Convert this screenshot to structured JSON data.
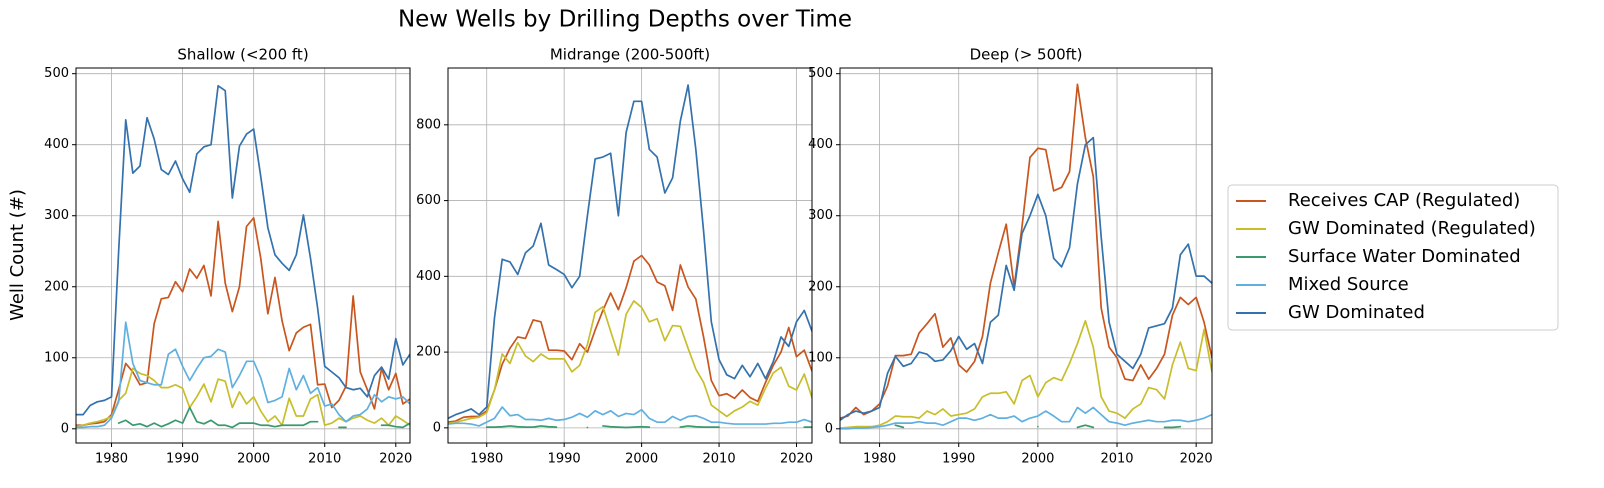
{
  "title": "New Wells by Drilling Depths over Time",
  "y_label": "Well Count (#)",
  "legend_loc": "center right",
  "chart_data": [
    {
      "type": "line",
      "title": "Shallow (<200 ft)",
      "grid": true,
      "x": [
        1975,
        1976,
        1977,
        1978,
        1979,
        1980,
        1981,
        1982,
        1983,
        1984,
        1985,
        1986,
        1987,
        1988,
        1989,
        1990,
        1991,
        1992,
        1993,
        1994,
        1995,
        1996,
        1997,
        1998,
        1999,
        2000,
        2001,
        2002,
        2003,
        2004,
        2005,
        2006,
        2007,
        2008,
        2009,
        2010,
        2011,
        2012,
        2013,
        2014,
        2015,
        2016,
        2017,
        2018,
        2019,
        2020,
        2021,
        2022
      ],
      "xlim": [
        1975,
        2022
      ],
      "xticks": [
        1980,
        1990,
        2000,
        2010,
        2020
      ],
      "ylim": [
        -20,
        508
      ],
      "yticks": [
        0,
        100,
        200,
        300,
        400,
        500
      ],
      "series": [
        {
          "name": "Receives CAP (Regulated)",
          "color": "#c8561e",
          "values": [
            5,
            5,
            7,
            8,
            10,
            20,
            55,
            92,
            80,
            62,
            65,
            148,
            183,
            185,
            207,
            193,
            225,
            212,
            230,
            187,
            292,
            205,
            165,
            200,
            285,
            297,
            240,
            162,
            213,
            152,
            110,
            135,
            143,
            147,
            62,
            63,
            30,
            40,
            60,
            187,
            80,
            55,
            28,
            85,
            55,
            78,
            35,
            42
          ]
        },
        {
          "name": "GW Dominated (Regulated)",
          "color": "#c8be2c",
          "values": [
            3,
            5,
            8,
            10,
            13,
            17,
            40,
            50,
            85,
            78,
            75,
            68,
            58,
            58,
            62,
            57,
            30,
            45,
            63,
            38,
            70,
            67,
            30,
            52,
            35,
            45,
            25,
            10,
            18,
            5,
            43,
            18,
            18,
            42,
            48,
            5,
            8,
            15,
            10,
            15,
            18,
            12,
            8,
            15,
            5,
            18,
            12,
            5
          ]
        },
        {
          "name": "Surface Water Dominated",
          "color": "#3a9a6e",
          "values": [
            null,
            null,
            null,
            null,
            null,
            null,
            8,
            12,
            5,
            7,
            3,
            8,
            3,
            7,
            12,
            8,
            30,
            10,
            7,
            12,
            5,
            5,
            2,
            8,
            8,
            8,
            5,
            5,
            3,
            5,
            5,
            5,
            5,
            10,
            10,
            null,
            null,
            2,
            2,
            null,
            null,
            null,
            null,
            5,
            5,
            3,
            2,
            8
          ]
        },
        {
          "name": "Mixed Source",
          "color": "#5fb0e0",
          "values": [
            2,
            2,
            3,
            3,
            5,
            15,
            38,
            150,
            92,
            68,
            65,
            62,
            62,
            105,
            112,
            88,
            68,
            85,
            100,
            102,
            112,
            108,
            58,
            75,
            95,
            95,
            72,
            37,
            40,
            45,
            85,
            55,
            75,
            50,
            58,
            32,
            35,
            20,
            10,
            18,
            20,
            28,
            48,
            38,
            45,
            42,
            45,
            35
          ]
        },
        {
          "name": "GW Dominated",
          "color": "#3472ad",
          "values": [
            20,
            20,
            33,
            38,
            40,
            45,
            250,
            435,
            360,
            370,
            438,
            408,
            365,
            358,
            377,
            352,
            333,
            387,
            397,
            400,
            483,
            476,
            325,
            398,
            415,
            422,
            355,
            283,
            245,
            233,
            223,
            245,
            301,
            240,
            170,
            88,
            80,
            72,
            58,
            55,
            57,
            45,
            75,
            87,
            70,
            127,
            90,
            105
          ]
        }
      ]
    },
    {
      "type": "line",
      "title": "Midrange (200-500ft)",
      "grid": true,
      "x": [
        1975,
        1976,
        1977,
        1978,
        1979,
        1980,
        1981,
        1982,
        1983,
        1984,
        1985,
        1986,
        1987,
        1988,
        1989,
        1990,
        1991,
        1992,
        1993,
        1994,
        1995,
        1996,
        1997,
        1998,
        1999,
        2000,
        2001,
        2002,
        2003,
        2004,
        2005,
        2006,
        2007,
        2008,
        2009,
        2010,
        2011,
        2012,
        2013,
        2014,
        2015,
        2016,
        2017,
        2018,
        2019,
        2020,
        2021,
        2022
      ],
      "xlim": [
        1975,
        2022
      ],
      "xticks": [
        1980,
        1990,
        2000,
        2010,
        2020
      ],
      "ylim": [
        -40,
        950
      ],
      "yticks": [
        0,
        200,
        400,
        600,
        800
      ],
      "series": [
        {
          "name": "Receives CAP (Regulated)",
          "color": "#c8561e",
          "values": [
            15,
            18,
            28,
            30,
            30,
            45,
            100,
            168,
            210,
            240,
            236,
            285,
            280,
            205,
            205,
            203,
            180,
            222,
            200,
            258,
            310,
            356,
            312,
            370,
            440,
            455,
            430,
            385,
            375,
            310,
            430,
            372,
            340,
            240,
            125,
            85,
            90,
            78,
            100,
            80,
            70,
            120,
            165,
            200,
            265,
            188,
            205,
            150
          ]
        },
        {
          "name": "GW Dominated (Regulated)",
          "color": "#c8be2c",
          "values": [
            12,
            15,
            20,
            25,
            28,
            40,
            100,
            195,
            170,
            225,
            190,
            175,
            195,
            182,
            182,
            182,
            148,
            165,
            220,
            305,
            320,
            255,
            192,
            300,
            335,
            318,
            280,
            288,
            230,
            270,
            268,
            210,
            155,
            120,
            60,
            45,
            30,
            45,
            55,
            70,
            60,
            105,
            145,
            160,
            110,
            100,
            142,
            80
          ]
        },
        {
          "name": "Surface Water Dominated",
          "color": "#3a9a6e",
          "values": [
            null,
            null,
            null,
            null,
            null,
            2,
            2,
            3,
            5,
            3,
            2,
            2,
            5,
            3,
            2,
            null,
            null,
            null,
            1,
            null,
            5,
            3,
            2,
            1,
            2,
            3,
            2,
            null,
            null,
            null,
            2,
            5,
            3,
            2,
            2,
            2,
            null,
            null,
            null,
            null,
            null,
            null,
            null,
            null,
            null,
            null,
            2,
            2
          ]
        },
        {
          "name": "Mixed Source",
          "color": "#5fb0e0",
          "values": [
            10,
            12,
            12,
            10,
            5,
            15,
            25,
            55,
            32,
            35,
            22,
            22,
            20,
            25,
            20,
            22,
            28,
            38,
            28,
            45,
            35,
            45,
            30,
            38,
            35,
            48,
            25,
            15,
            15,
            30,
            20,
            30,
            32,
            25,
            15,
            15,
            12,
            10,
            10,
            10,
            10,
            10,
            12,
            12,
            15,
            15,
            22,
            15
          ]
        },
        {
          "name": "GW Dominated",
          "color": "#3472ad",
          "values": [
            25,
            35,
            42,
            50,
            35,
            55,
            290,
            445,
            438,
            405,
            462,
            480,
            540,
            430,
            418,
            405,
            370,
            400,
            560,
            710,
            715,
            725,
            560,
            780,
            862,
            862,
            735,
            715,
            620,
            660,
            810,
            905,
            735,
            520,
            280,
            180,
            140,
            130,
            165,
            135,
            170,
            130,
            175,
            240,
            215,
            280,
            310,
            255
          ]
        }
      ]
    },
    {
      "type": "line",
      "title": "Deep (> 500ft)",
      "grid": true,
      "x": [
        1975,
        1976,
        1977,
        1978,
        1979,
        1980,
        1981,
        1982,
        1983,
        1984,
        1985,
        1986,
        1987,
        1988,
        1989,
        1990,
        1991,
        1992,
        1993,
        1994,
        1995,
        1996,
        1997,
        1998,
        1999,
        2000,
        2001,
        2002,
        2003,
        2004,
        2005,
        2006,
        2007,
        2008,
        2009,
        2010,
        2011,
        2012,
        2013,
        2014,
        2015,
        2016,
        2017,
        2018,
        2019,
        2020,
        2021,
        2022
      ],
      "xlim": [
        1975,
        2022
      ],
      "xticks": [
        1980,
        1990,
        2000,
        2010,
        2020
      ],
      "ylim": [
        -20,
        508
      ],
      "yticks": [
        0,
        100,
        200,
        300,
        400,
        500
      ],
      "series": [
        {
          "name": "Receives CAP (Regulated)",
          "color": "#c8561e",
          "values": [
            15,
            18,
            30,
            20,
            25,
            35,
            60,
            103,
            103,
            105,
            135,
            148,
            162,
            115,
            128,
            90,
            80,
            95,
            130,
            205,
            248,
            288,
            200,
            285,
            382,
            395,
            393,
            335,
            340,
            362,
            485,
            410,
            355,
            170,
            115,
            100,
            70,
            68,
            90,
            70,
            85,
            105,
            160,
            185,
            175,
            185,
            150,
            100
          ]
        },
        {
          "name": "GW Dominated (Regulated)",
          "color": "#c8be2c",
          "values": [
            1,
            2,
            3,
            3,
            3,
            5,
            10,
            18,
            17,
            17,
            15,
            25,
            20,
            28,
            18,
            20,
            22,
            28,
            45,
            50,
            50,
            52,
            35,
            68,
            75,
            45,
            65,
            72,
            68,
            92,
            120,
            152,
            115,
            45,
            25,
            22,
            15,
            28,
            35,
            58,
            55,
            42,
            90,
            122,
            85,
            82,
            140,
            80
          ]
        },
        {
          "name": "Surface Water Dominated",
          "color": "#3a9a6e",
          "values": [
            null,
            null,
            null,
            null,
            null,
            null,
            null,
            5,
            2,
            null,
            null,
            null,
            null,
            null,
            null,
            null,
            null,
            null,
            null,
            null,
            null,
            null,
            null,
            null,
            null,
            3,
            null,
            null,
            null,
            null,
            2,
            5,
            2,
            null,
            null,
            null,
            null,
            null,
            null,
            null,
            null,
            2,
            2,
            3,
            null,
            null,
            null,
            null
          ]
        },
        {
          "name": "Mixed Source",
          "color": "#5fb0e0",
          "values": [
            0,
            0,
            1,
            1,
            2,
            3,
            5,
            8,
            8,
            8,
            10,
            8,
            8,
            5,
            10,
            15,
            15,
            12,
            15,
            20,
            15,
            15,
            18,
            10,
            15,
            18,
            25,
            18,
            10,
            10,
            30,
            22,
            30,
            20,
            10,
            8,
            5,
            8,
            10,
            12,
            10,
            10,
            12,
            12,
            10,
            12,
            15,
            20
          ]
        },
        {
          "name": "GW Dominated",
          "color": "#3472ad",
          "values": [
            12,
            20,
            25,
            22,
            25,
            30,
            78,
            102,
            88,
            92,
            108,
            105,
            95,
            97,
            110,
            130,
            112,
            120,
            92,
            150,
            160,
            230,
            195,
            275,
            300,
            330,
            300,
            240,
            228,
            255,
            345,
            400,
            410,
            270,
            150,
            105,
            95,
            85,
            105,
            142,
            145,
            148,
            170,
            245,
            260,
            215,
            215,
            205
          ]
        }
      ]
    }
  ]
}
